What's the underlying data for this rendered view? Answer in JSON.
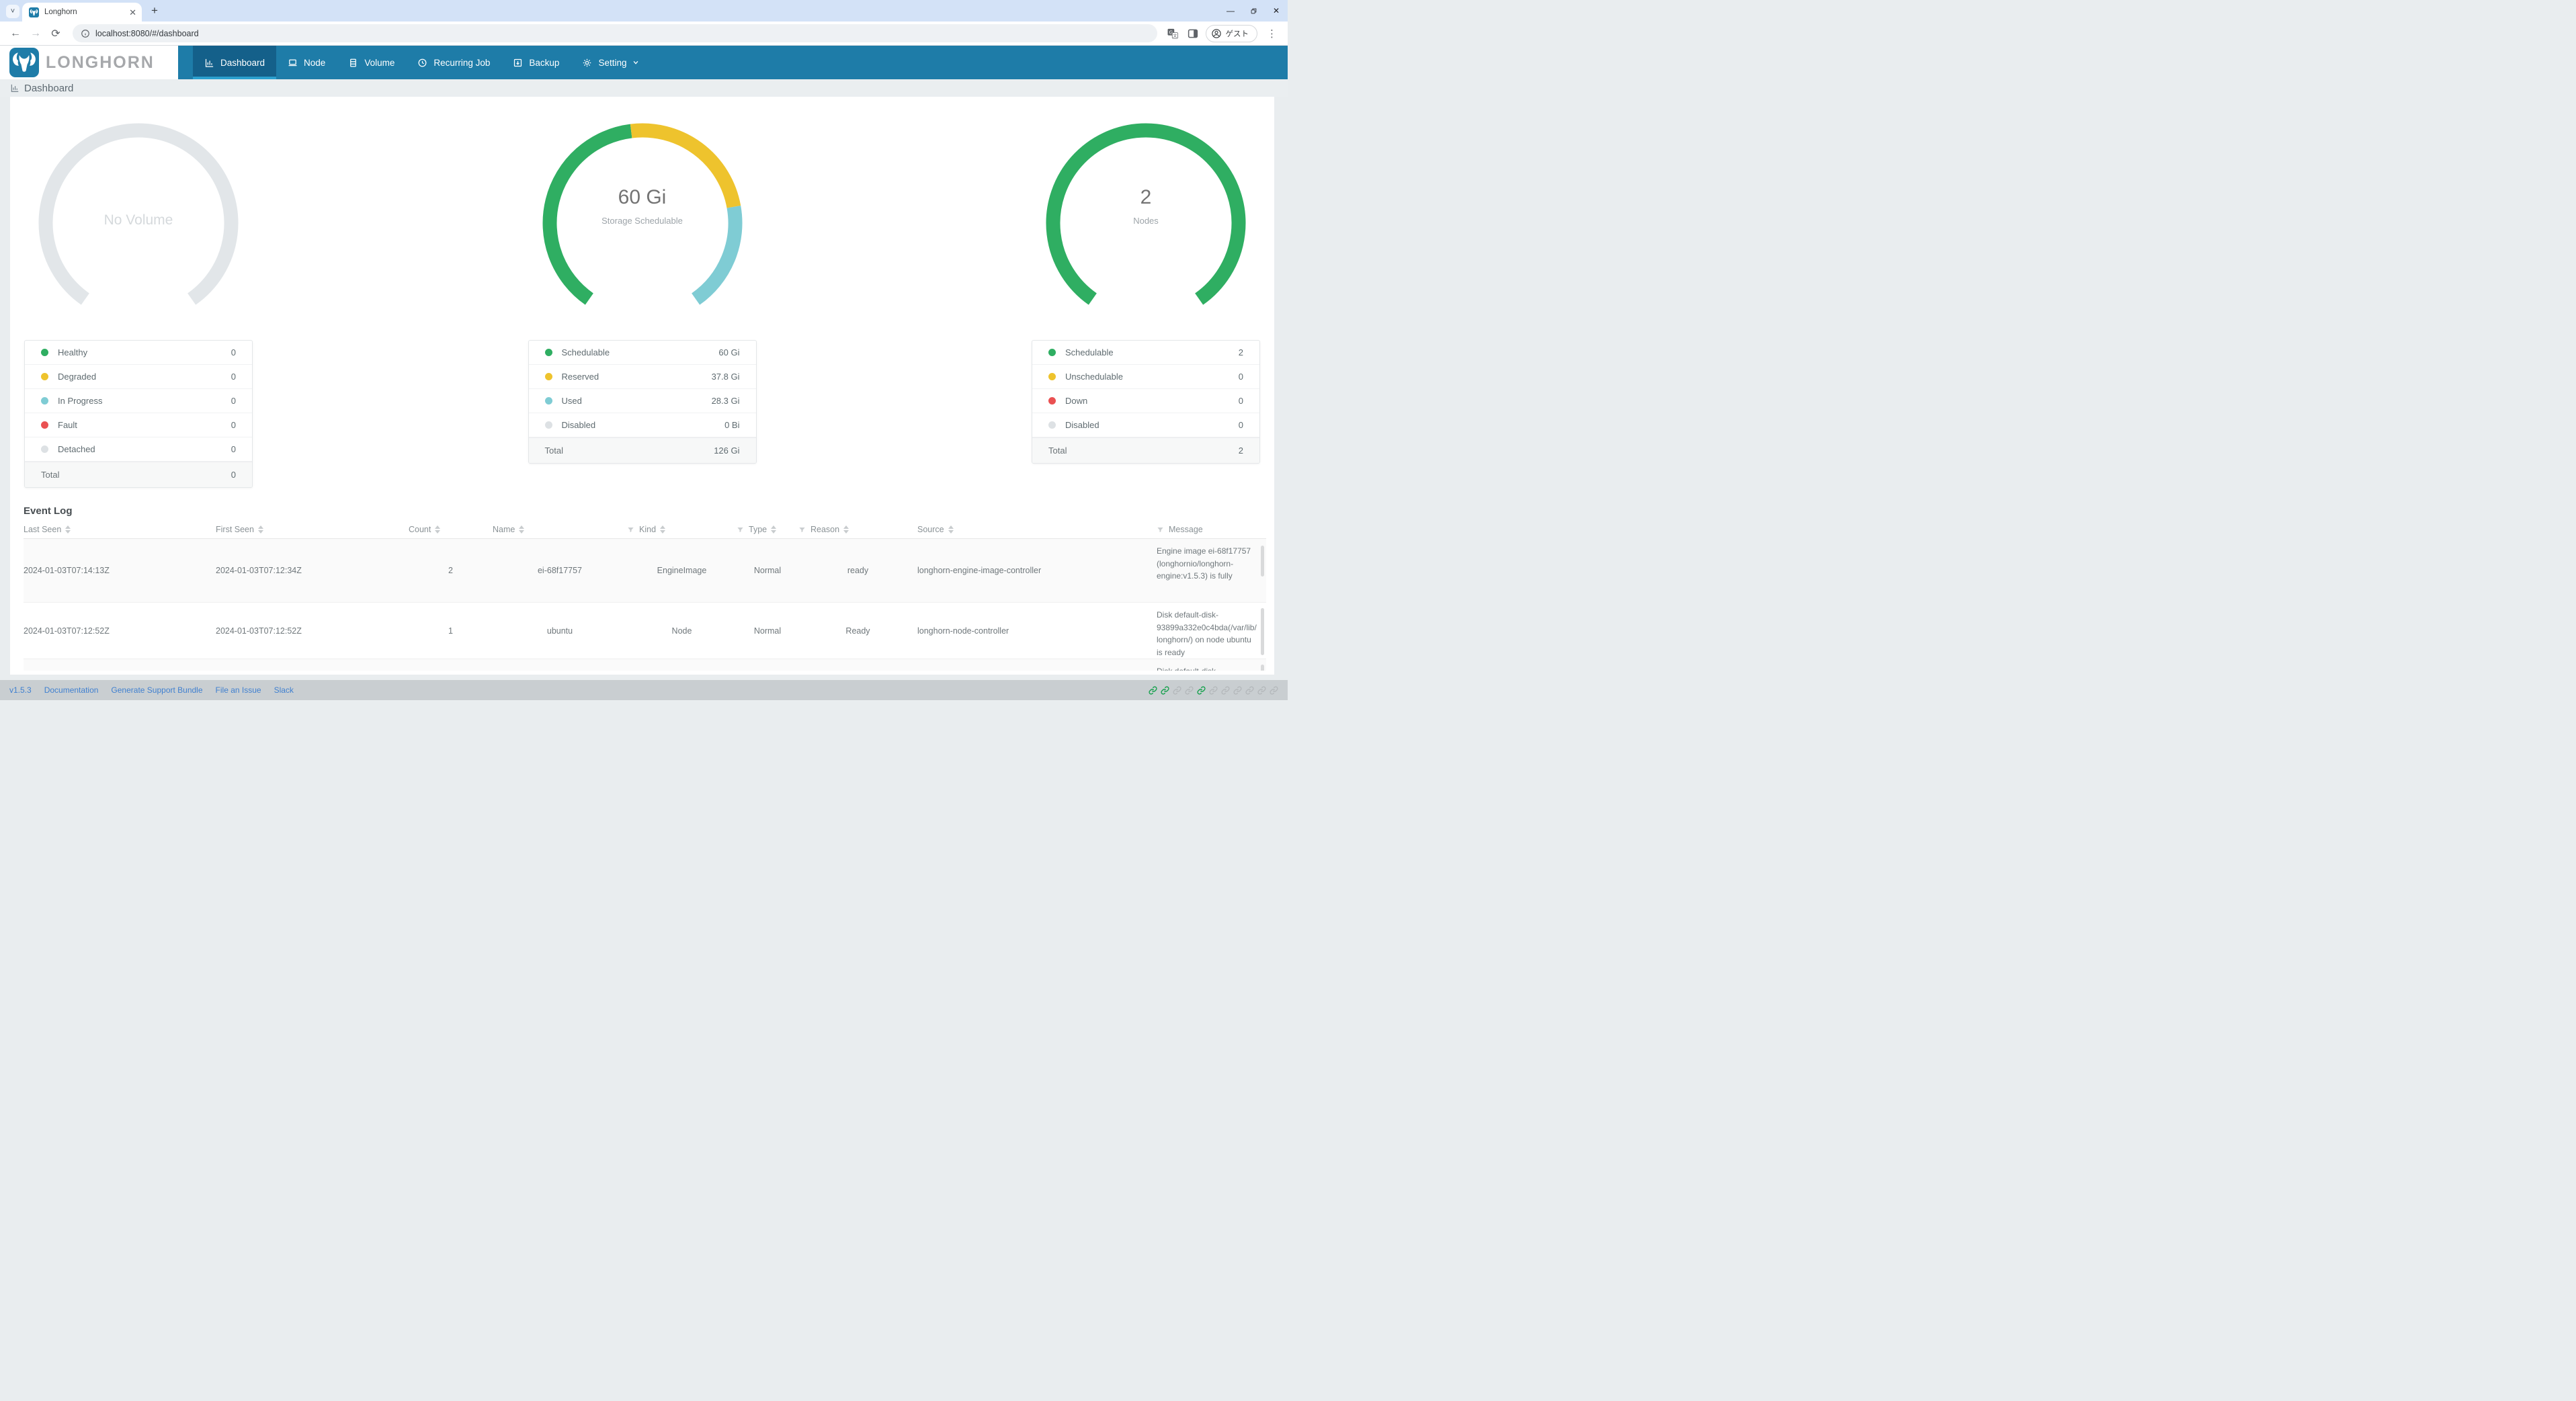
{
  "browser": {
    "tab_title": "Longhorn",
    "url": "localhost:8080/#/dashboard",
    "profile_label": "ゲスト"
  },
  "nav": {
    "brand": "LONGHORN",
    "items": [
      {
        "label": "Dashboard",
        "icon": "bar-chart-icon",
        "active": true
      },
      {
        "label": "Node",
        "icon": "laptop-icon"
      },
      {
        "label": "Volume",
        "icon": "server-icon"
      },
      {
        "label": "Recurring Job",
        "icon": "clock-icon"
      },
      {
        "label": "Backup",
        "icon": "archive-arrow-icon"
      },
      {
        "label": "Setting",
        "icon": "gear-icon",
        "has_dropdown": true
      }
    ]
  },
  "page": {
    "title": "Dashboard"
  },
  "colors": {
    "green": "#2fae62",
    "yellow": "#eec32d",
    "teal": "#7fccd4",
    "red": "#ea5152",
    "gray": "#dde1e4",
    "empty_arc": "#e2e6e9",
    "nav": "#1e7ca8",
    "nav_active": "#14608a",
    "nav_underline": "#2ba0cf"
  },
  "chart_data": [
    {
      "type": "gauge",
      "name": "volume-gauge",
      "start_angle": 235,
      "sweep_angle": 290,
      "center_value": "No Volume",
      "center_label": "",
      "empty": true,
      "segments": [],
      "legend": {
        "rows": [
          {
            "label": "Healthy",
            "value": "0",
            "color": "#2fae62"
          },
          {
            "label": "Degraded",
            "value": "0",
            "color": "#eec32d"
          },
          {
            "label": "In Progress",
            "value": "0",
            "color": "#7fccd4"
          },
          {
            "label": "Fault",
            "value": "0",
            "color": "#ea5152"
          },
          {
            "label": "Detached",
            "value": "0",
            "color": "#dde1e4"
          }
        ],
        "total_label": "Total",
        "total_value": "0"
      }
    },
    {
      "type": "gauge",
      "name": "storage-gauge",
      "start_angle": 235,
      "sweep_angle": 290,
      "center_value": "60 Gi",
      "center_label": "Storage Schedulable",
      "empty": false,
      "segments": [
        {
          "name": "Schedulable",
          "value": 60,
          "color": "#2fae62"
        },
        {
          "name": "Reserved",
          "value": 37.8,
          "color": "#eec32d"
        },
        {
          "name": "Used",
          "value": 28.3,
          "color": "#7fccd4"
        },
        {
          "name": "Disabled",
          "value": 0,
          "color": "#dde1e4"
        }
      ],
      "legend": {
        "rows": [
          {
            "label": "Schedulable",
            "value": "60 Gi",
            "color": "#2fae62"
          },
          {
            "label": "Reserved",
            "value": "37.8 Gi",
            "color": "#eec32d"
          },
          {
            "label": "Used",
            "value": "28.3 Gi",
            "color": "#7fccd4"
          },
          {
            "label": "Disabled",
            "value": "0 Bi",
            "color": "#dde1e4"
          }
        ],
        "total_label": "Total",
        "total_value": "126 Gi"
      }
    },
    {
      "type": "gauge",
      "name": "node-gauge",
      "start_angle": 235,
      "sweep_angle": 290,
      "center_value": "2",
      "center_label": "Nodes",
      "empty": false,
      "segments": [
        {
          "name": "Schedulable",
          "value": 2,
          "color": "#2fae62"
        },
        {
          "name": "Unschedulable",
          "value": 0,
          "color": "#eec32d"
        },
        {
          "name": "Down",
          "value": 0,
          "color": "#ea5152"
        },
        {
          "name": "Disabled",
          "value": 0,
          "color": "#dde1e4"
        }
      ],
      "legend": {
        "rows": [
          {
            "label": "Schedulable",
            "value": "2",
            "color": "#2fae62"
          },
          {
            "label": "Unschedulable",
            "value": "0",
            "color": "#eec32d"
          },
          {
            "label": "Down",
            "value": "0",
            "color": "#ea5152"
          },
          {
            "label": "Disabled",
            "value": "0",
            "color": "#dde1e4"
          }
        ],
        "total_label": "Total",
        "total_value": "2"
      }
    }
  ],
  "event_log": {
    "title": "Event Log",
    "columns": [
      {
        "key": "last_seen",
        "label": "Last Seen",
        "sorter": true,
        "filter": false,
        "align": "left"
      },
      {
        "key": "first_seen",
        "label": "First Seen",
        "sorter": true,
        "filter": false,
        "align": "left"
      },
      {
        "key": "count",
        "label": "Count",
        "sorter": true,
        "filter": false,
        "align": "center"
      },
      {
        "key": "name",
        "label": "Name",
        "sorter": true,
        "filter": false,
        "align": "center"
      },
      {
        "key": "kind",
        "label": "Kind",
        "sorter": true,
        "filter": true,
        "align": "center"
      },
      {
        "key": "type",
        "label": "Type",
        "sorter": true,
        "filter": true,
        "align": "center"
      },
      {
        "key": "reason",
        "label": "Reason",
        "sorter": true,
        "filter": true,
        "align": "center"
      },
      {
        "key": "source",
        "label": "Source",
        "sorter": true,
        "filter": false,
        "align": "left"
      },
      {
        "key": "message",
        "label": "Message",
        "sorter": false,
        "filter": true,
        "align": "left"
      }
    ],
    "rows": [
      {
        "last_seen": "2024-01-03T07:14:13Z",
        "first_seen": "2024-01-03T07:12:34Z",
        "count": "2",
        "name": "ei-68f17757",
        "kind": "EngineImage",
        "type": "Normal",
        "reason": "ready",
        "source": "longhorn-engine-image-controller",
        "message": "Engine image ei-68f17757 (longhornio/longhorn-engine:v1.5.3) is fully"
      },
      {
        "last_seen": "2024-01-03T07:12:52Z",
        "first_seen": "2024-01-03T07:12:52Z",
        "count": "1",
        "name": "ubuntu",
        "kind": "Node",
        "type": "Normal",
        "reason": "Ready",
        "source": "longhorn-node-controller",
        "message": "Disk default-disk-93899a332e0c4bda(/var/lib/longhorn/) on node ubuntu is ready"
      },
      {
        "last_seen": "",
        "first_seen": "",
        "count": "",
        "name": "",
        "kind": "",
        "type": "",
        "reason": "",
        "source": "",
        "message": "Disk default-disk-"
      }
    ]
  },
  "footer": {
    "version": "v1.5.3",
    "links": [
      "Documentation",
      "Generate Support Bundle",
      "File an Issue",
      "Slack"
    ],
    "connection_statuses": [
      "connected",
      "connected",
      "disconnected",
      "disconnected",
      "connected",
      "disconnected",
      "disconnected",
      "disconnected",
      "disconnected",
      "disconnected",
      "disconnected"
    ],
    "status_colors": {
      "connected": "#13a04b",
      "disconnected": "#b4b8bb"
    }
  }
}
